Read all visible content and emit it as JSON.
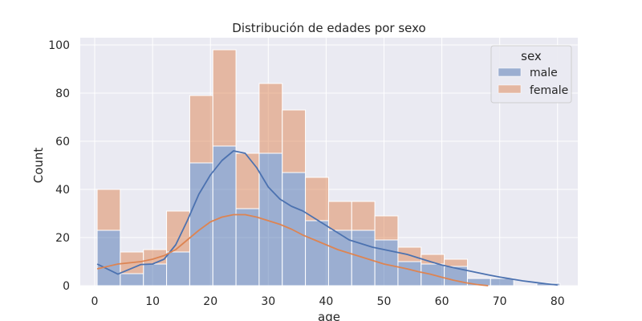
{
  "chart_data": {
    "type": "histogram",
    "title": "Distribución de edades por sexo",
    "xlabel": "age",
    "ylabel": "Count",
    "xlim": [
      -2.5,
      83.5
    ],
    "ylim": [
      0,
      103
    ],
    "xticks": [
      0,
      10,
      20,
      30,
      40,
      50,
      60,
      70,
      80
    ],
    "yticks": [
      0,
      20,
      40,
      60,
      80,
      100
    ],
    "grid": true,
    "stacked": true,
    "bin_edges": [
      0.42,
      4.42,
      8.42,
      12.42,
      16.42,
      20.42,
      24.42,
      28.42,
      32.42,
      36.42,
      40.42,
      44.42,
      48.42,
      52.42,
      56.42,
      60.42,
      64.42,
      68.42,
      72.42,
      76.42,
      80.42
    ],
    "legend": {
      "title": "sex",
      "position": "top-right"
    },
    "series": [
      {
        "name": "male",
        "color": "#4c72b0",
        "counts": [
          23,
          5,
          9,
          14,
          51,
          58,
          32,
          55,
          47,
          27,
          23,
          23,
          19,
          10,
          9,
          8,
          3,
          3,
          0,
          1
        ],
        "kde": [
          [
            0.42,
            9
          ],
          [
            4,
            4.8
          ],
          [
            8,
            8.8
          ],
          [
            10,
            9
          ],
          [
            12,
            11
          ],
          [
            14,
            17
          ],
          [
            16,
            27
          ],
          [
            18,
            38
          ],
          [
            20,
            46
          ],
          [
            22,
            52
          ],
          [
            24,
            56
          ],
          [
            26,
            55
          ],
          [
            28,
            49
          ],
          [
            30,
            41
          ],
          [
            32,
            36
          ],
          [
            34,
            33
          ],
          [
            36,
            31
          ],
          [
            38,
            28
          ],
          [
            40,
            25
          ],
          [
            42,
            22
          ],
          [
            44,
            19
          ],
          [
            46,
            17.5
          ],
          [
            48,
            16
          ],
          [
            50,
            15
          ],
          [
            52,
            14
          ],
          [
            54,
            13
          ],
          [
            56,
            11.5
          ],
          [
            58,
            10
          ],
          [
            60,
            8.6
          ],
          [
            62,
            7.5
          ],
          [
            64,
            6.5
          ],
          [
            66,
            5.5
          ],
          [
            68,
            4.5
          ],
          [
            70,
            3.6
          ],
          [
            72,
            2.8
          ],
          [
            74,
            2
          ],
          [
            76,
            1.4
          ],
          [
            78,
            0.8
          ],
          [
            80,
            0.3
          ]
        ]
      },
      {
        "name": "female",
        "color": "#dd8452",
        "counts": [
          17,
          9,
          6,
          17,
          28,
          40,
          23,
          29,
          26,
          18,
          12,
          12,
          10,
          6,
          4,
          3,
          0,
          0,
          0,
          0
        ],
        "kde": [
          [
            0.42,
            7
          ],
          [
            4,
            9
          ],
          [
            8,
            10
          ],
          [
            10,
            11
          ],
          [
            12,
            12.5
          ],
          [
            14,
            15
          ],
          [
            16,
            19
          ],
          [
            18,
            23
          ],
          [
            20,
            26.5
          ],
          [
            22,
            28.5
          ],
          [
            24,
            29.5
          ],
          [
            26,
            29.5
          ],
          [
            28,
            28.5
          ],
          [
            30,
            27
          ],
          [
            32,
            25.5
          ],
          [
            34,
            23.5
          ],
          [
            36,
            21
          ],
          [
            38,
            19
          ],
          [
            40,
            17
          ],
          [
            42,
            15
          ],
          [
            44,
            13.5
          ],
          [
            46,
            12
          ],
          [
            48,
            10.5
          ],
          [
            50,
            9
          ],
          [
            52,
            8
          ],
          [
            54,
            7
          ],
          [
            56,
            5.8
          ],
          [
            58,
            4.8
          ],
          [
            60,
            3.5
          ],
          [
            62,
            2.3
          ],
          [
            64,
            1.3
          ],
          [
            66,
            0.5
          ],
          [
            68,
            0
          ]
        ]
      }
    ]
  }
}
